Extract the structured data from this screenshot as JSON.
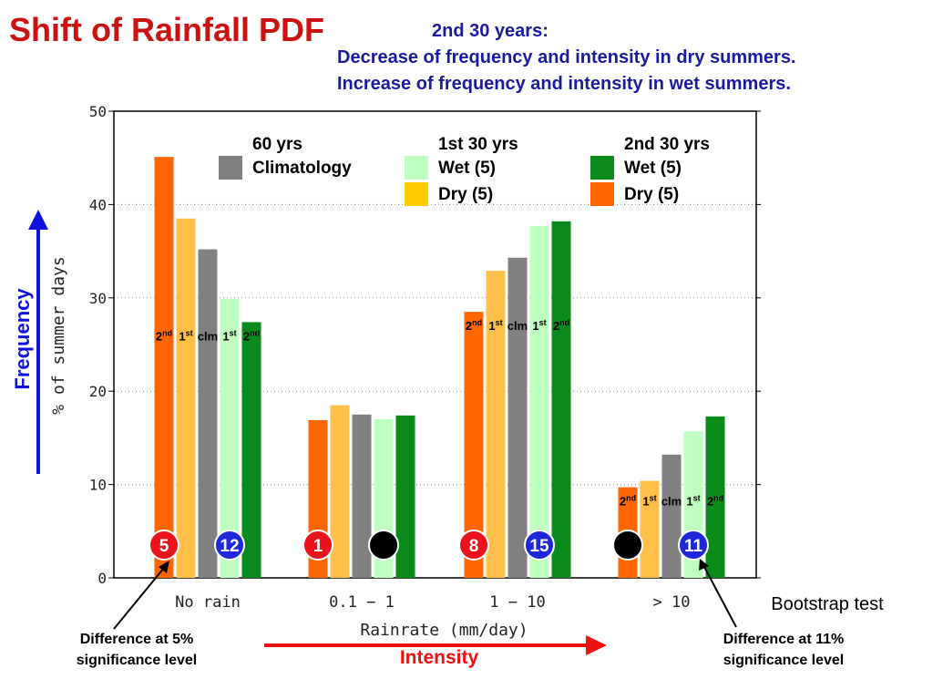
{
  "title": "Shift of Rainfall PDF",
  "subtitle": {
    "heading": "2nd 30 years:",
    "lines": [
      "Decrease of frequency and intensity in dry summers.",
      "Increase of frequency and intensity in wet summers."
    ]
  },
  "chart_data": {
    "type": "bar",
    "ylabel": "% of summer days",
    "xlabel": "Rainrate (mm/day)",
    "ylim": [
      0,
      50
    ],
    "yticks": [
      "0",
      "10",
      "20",
      "30",
      "40",
      "50"
    ],
    "grid": true,
    "categories": [
      "No rain",
      "0.1 − 1",
      "1 − 10",
      "> 10"
    ],
    "series": [
      {
        "key": "dry2",
        "values": [
          45.1,
          16.9,
          28.5,
          9.7
        ],
        "color": "#ff6600"
      },
      {
        "key": "dry1",
        "values": [
          38.5,
          18.5,
          32.9,
          10.4
        ],
        "color": "#ffc04a"
      },
      {
        "key": "clm",
        "values": [
          35.2,
          17.5,
          34.3,
          13.2
        ],
        "color": "#808080"
      },
      {
        "key": "wet1",
        "values": [
          29.9,
          17.0,
          37.7,
          15.7
        ],
        "color": "#bfffbf"
      },
      {
        "key": "wet2",
        "values": [
          27.4,
          17.4,
          38.2,
          17.3
        ],
        "color": "#0a8a1a"
      }
    ],
    "legend": [
      {
        "heading": "60 yrs",
        "entries": [
          {
            "label": "Climatology",
            "color": "#808080"
          }
        ]
      },
      {
        "heading": "1st 30 yrs",
        "entries": [
          {
            "label": "Wet (5)",
            "color": "#bfffbf"
          },
          {
            "label": "Dry (5)",
            "color": "#ffcc00"
          }
        ]
      },
      {
        "heading": "2nd 30 yrs",
        "entries": [
          {
            "label": "Wet (5)",
            "color": "#0a8a1a"
          },
          {
            "label": "Dry (5)",
            "color": "#ff6600"
          }
        ]
      }
    ],
    "bar_labels": [
      {
        "base": "2",
        "sup": "nd"
      },
      {
        "base": "1",
        "sup": "st"
      },
      {
        "base": "clm",
        "sup": ""
      },
      {
        "base": "1",
        "sup": "st"
      },
      {
        "base": "2",
        "sup": "nd"
      }
    ],
    "bar_label_groups": [
      0,
      2,
      3
    ],
    "markers": [
      {
        "category": 0,
        "series": 0,
        "text": "5",
        "fill": "#e8131b"
      },
      {
        "category": 0,
        "series": 3,
        "text": "12",
        "fill": "#1e28d8"
      },
      {
        "category": 1,
        "series": 0,
        "text": "1",
        "fill": "#e8131b"
      },
      {
        "category": 1,
        "series": 3,
        "text": "",
        "fill": "#000000"
      },
      {
        "category": 2,
        "series": 0,
        "text": "8",
        "fill": "#e8131b"
      },
      {
        "category": 2,
        "series": 3,
        "text": "15",
        "fill": "#1e28d8"
      },
      {
        "category": 3,
        "series": 0,
        "text": "",
        "fill": "#000000"
      },
      {
        "category": 3,
        "series": 3,
        "text": "11",
        "fill": "#1e28d8"
      }
    ],
    "annotations": {
      "frequency": "Frequency",
      "intensity": "Intensity",
      "bootstrap": "Bootstrap test",
      "note_left": [
        "Difference at  5%",
        "significance level"
      ],
      "note_right": [
        "Difference at 11%",
        "significance level"
      ],
      "arrow_blue_color": "#1010e0",
      "arrow_red_color": "#ee1111"
    }
  }
}
